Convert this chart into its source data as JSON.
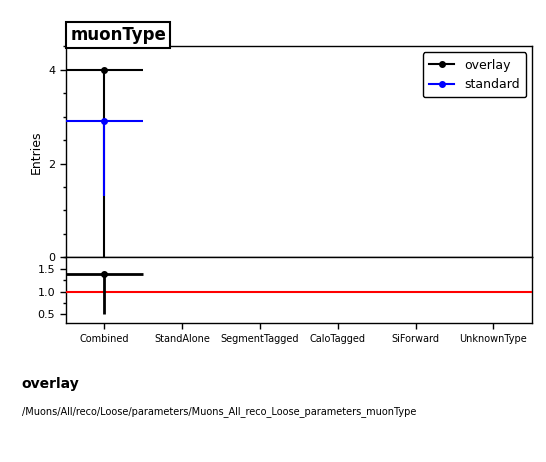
{
  "title": "muonType",
  "categories": [
    "Combined",
    "StandAlone",
    "SegmentTagged",
    "CaloTagged",
    "SiForward",
    "UnknownType"
  ],
  "n_bins": 6,
  "x_bin_centers": [
    0.5,
    1.5,
    2.5,
    3.5,
    4.5,
    5.5
  ],
  "x_min": 0.0,
  "x_max": 6.0,
  "overlay_values": [
    4.0,
    0,
    0,
    0,
    0,
    0
  ],
  "overlay_xerr": [
    0.5,
    0.5,
    0.5,
    0.5,
    0.5,
    0.5
  ],
  "overlay_yerr_lo": [
    4.0,
    0,
    0,
    0,
    0,
    0
  ],
  "overlay_yerr_hi": [
    0.0,
    0,
    0,
    0,
    0,
    0
  ],
  "standard_values": [
    2.9,
    0,
    0,
    0,
    0,
    0
  ],
  "standard_xerr": [
    0.5,
    0.5,
    0.5,
    0.5,
    0.5,
    0.5
  ],
  "standard_yerr_lo": [
    1.6,
    0,
    0,
    0,
    0,
    0
  ],
  "standard_yerr_hi": [
    0.0,
    0,
    0,
    0,
    0,
    0
  ],
  "ratio_values": [
    1.38,
    0,
    0,
    0,
    0,
    0
  ],
  "ratio_xerr": [
    0.5,
    0.5,
    0.5,
    0.5,
    0.5,
    0.5
  ],
  "ratio_yerr_lo": [
    0.88,
    0,
    0,
    0,
    0,
    0
  ],
  "ratio_yerr_hi": [
    0.0,
    0,
    0,
    0,
    0,
    0
  ],
  "main_ylim": [
    0,
    4.5
  ],
  "main_yticks": [
    0,
    2,
    4
  ],
  "ratio_ylim": [
    0.3,
    1.75
  ],
  "ratio_yticks": [
    0.5,
    1.0,
    1.5
  ],
  "ylabel_main": "Entries",
  "overlay_color": "#000000",
  "standard_color": "#0000ff",
  "ratio_line_color": "#ff0000",
  "footer_line1": "overlay",
  "footer_line2": "/Muons/All/reco/Loose/parameters/Muons_All_reco_Loose_parameters_muonType",
  "legend_entries": [
    "overlay",
    "standard"
  ],
  "legend_colors": [
    "#000000",
    "#0000ff"
  ],
  "title_fontsize": 12,
  "axis_fontsize": 9,
  "tick_fontsize": 8,
  "footer1_fontsize": 10,
  "footer2_fontsize": 7
}
